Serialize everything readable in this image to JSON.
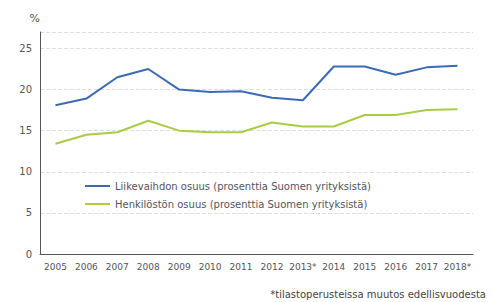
{
  "chart_data": {
    "type": "line",
    "ylabel": "%",
    "annotations": [
      "*tilastoperusteissa muutos edellisvuodesta"
    ],
    "categories": [
      "2005",
      "2006",
      "2007",
      "2008",
      "2009",
      "2010",
      "2011",
      "2012",
      "2013*",
      "2014",
      "2015",
      "2016",
      "2017",
      "2018*"
    ],
    "series": [
      {
        "name": "Liikevaihdon osuus (prosenttia Suomen yrityksistä)",
        "color": "#3C6BB5",
        "values": [
          18.1,
          18.9,
          21.5,
          22.5,
          20.0,
          19.7,
          19.8,
          19.0,
          18.7,
          22.8,
          22.8,
          21.8,
          22.7,
          22.9
        ]
      },
      {
        "name": "Henkilöstön osuus (prosenttia Suomen yrityksistä)",
        "color": "#AACC44",
        "values": [
          13.4,
          14.5,
          14.8,
          16.2,
          15.0,
          14.8,
          14.8,
          16.0,
          15.5,
          15.5,
          16.9,
          16.9,
          17.5,
          17.6
        ]
      }
    ],
    "marker": "none",
    "ylim": [
      0,
      27
    ],
    "yticks": [
      0,
      5,
      10,
      15,
      20,
      25
    ],
    "grid": true,
    "legend": "lower left"
  }
}
